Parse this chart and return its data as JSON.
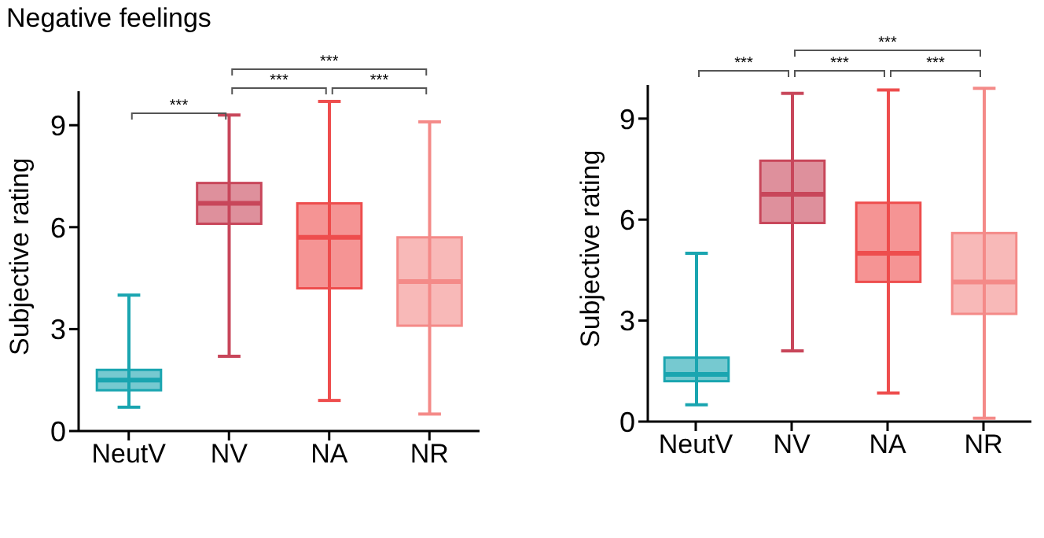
{
  "chart_data": [
    {
      "type": "box",
      "title": "Negative feelings",
      "ylabel": "Subjective rating",
      "categories": [
        "NeutV",
        "NV",
        "NA",
        "NR"
      ],
      "colors": [
        "#1aa5b0",
        "#c8465a",
        "#ee4d4d",
        "#f48a88"
      ],
      "boxes": [
        {
          "low": 0.7,
          "q1": 1.2,
          "median": 1.5,
          "q3": 1.8,
          "high": 4.0
        },
        {
          "low": 2.2,
          "q1": 6.1,
          "median": 6.7,
          "q3": 7.3,
          "high": 9.3
        },
        {
          "low": 0.9,
          "q1": 4.2,
          "median": 5.7,
          "q3": 6.7,
          "high": 9.7
        },
        {
          "low": 0.5,
          "q1": 3.1,
          "median": 4.4,
          "q3": 5.7,
          "high": 9.1
        }
      ],
      "ylim": [
        0,
        10
      ],
      "yticks": [
        0,
        3,
        6,
        9
      ],
      "annotations": [
        "***",
        "***",
        "***",
        "***"
      ]
    },
    {
      "type": "box",
      "ylabel": "Subjective rating",
      "categories": [
        "NeutV",
        "NV",
        "NA",
        "NR"
      ],
      "colors": [
        "#1aa5b0",
        "#c8465a",
        "#ee4d4d",
        "#f48a88"
      ],
      "boxes": [
        {
          "low": 0.5,
          "q1": 1.2,
          "median": 1.4,
          "q3": 1.9,
          "high": 5.0
        },
        {
          "low": 2.1,
          "q1": 5.9,
          "median": 6.75,
          "q3": 7.75,
          "high": 9.75
        },
        {
          "low": 0.85,
          "q1": 4.15,
          "median": 5.0,
          "q3": 6.5,
          "high": 9.85
        },
        {
          "low": 0.1,
          "q1": 3.2,
          "median": 4.15,
          "q3": 5.6,
          "high": 9.9
        }
      ],
      "ylim": [
        0,
        10
      ],
      "yticks": [
        0,
        3,
        6,
        9
      ],
      "annotations": [
        "***",
        "***",
        "***",
        "***"
      ]
    }
  ]
}
